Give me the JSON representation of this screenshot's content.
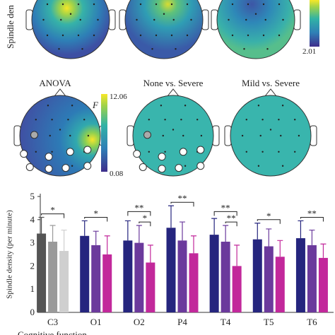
{
  "top_maps": {
    "axis_label": "Spindle den",
    "colorbar_min": 2.01
  },
  "maps": {
    "titles": [
      "ANOVA",
      "None vs. Severe",
      "Mild vs. Severe"
    ],
    "colorbar": {
      "symbol": "F",
      "max": 12.06,
      "min": 0.08
    }
  },
  "chart_data": {
    "type": "bar",
    "ylabel": "Spindle density (per minute)",
    "legend_title": "Cognitive function",
    "categories": [
      "C3",
      "O1",
      "O2",
      "P4",
      "T4",
      "T5",
      "T6"
    ],
    "ylim": [
      0,
      5
    ],
    "yticks": [
      0,
      1,
      2,
      3,
      4,
      5
    ],
    "series": [
      {
        "colors": [
          "#555555",
          "#25257e",
          "#25257e",
          "#25257e",
          "#25257e",
          "#25257e",
          "#25257e"
        ],
        "values": [
          3.4,
          3.3,
          3.1,
          3.65,
          3.35,
          3.15,
          3.2
        ],
        "errors": [
          0.7,
          0.65,
          0.85,
          0.95,
          0.7,
          0.7,
          0.75
        ]
      },
      {
        "colors": [
          "#9a9a9a",
          "#6b3a9c",
          "#6b3a9c",
          "#6b3a9c",
          "#6b3a9c",
          "#6b3a9c",
          "#6b3a9c"
        ],
        "values": [
          3.05,
          2.9,
          3.0,
          3.1,
          3.05,
          2.85,
          2.9
        ],
        "errors": [
          0.7,
          0.6,
          0.75,
          0.8,
          0.7,
          0.75,
          0.65
        ]
      },
      {
        "colors": [
          "#cfcfcf",
          "#c2289b",
          "#c2289b",
          "#c2289b",
          "#c2289b",
          "#c2289b",
          "#c2289b"
        ],
        "values": [
          2.65,
          2.5,
          2.15,
          2.55,
          2.0,
          2.4,
          2.35
        ],
        "errors": [
          0.9,
          0.8,
          0.75,
          0.75,
          0.9,
          0.7,
          0.6
        ]
      }
    ],
    "significance": [
      {
        "category": 0,
        "span": [
          0,
          2
        ],
        "label": "*"
      },
      {
        "category": 1,
        "span": [
          0,
          2
        ],
        "label": "*"
      },
      {
        "category": 2,
        "span": [
          0,
          2
        ],
        "label": "**"
      },
      {
        "category": 2,
        "span": [
          1,
          2
        ],
        "label": "*"
      },
      {
        "category": 3,
        "span": [
          0,
          2
        ],
        "label": "**"
      },
      {
        "category": 4,
        "span": [
          0,
          2
        ],
        "label": "**"
      },
      {
        "category": 4,
        "span": [
          1,
          2
        ],
        "label": "**"
      },
      {
        "category": 5,
        "span": [
          0,
          2
        ],
        "label": "*"
      },
      {
        "category": 6,
        "span": [
          0,
          2
        ],
        "label": "**"
      }
    ]
  }
}
